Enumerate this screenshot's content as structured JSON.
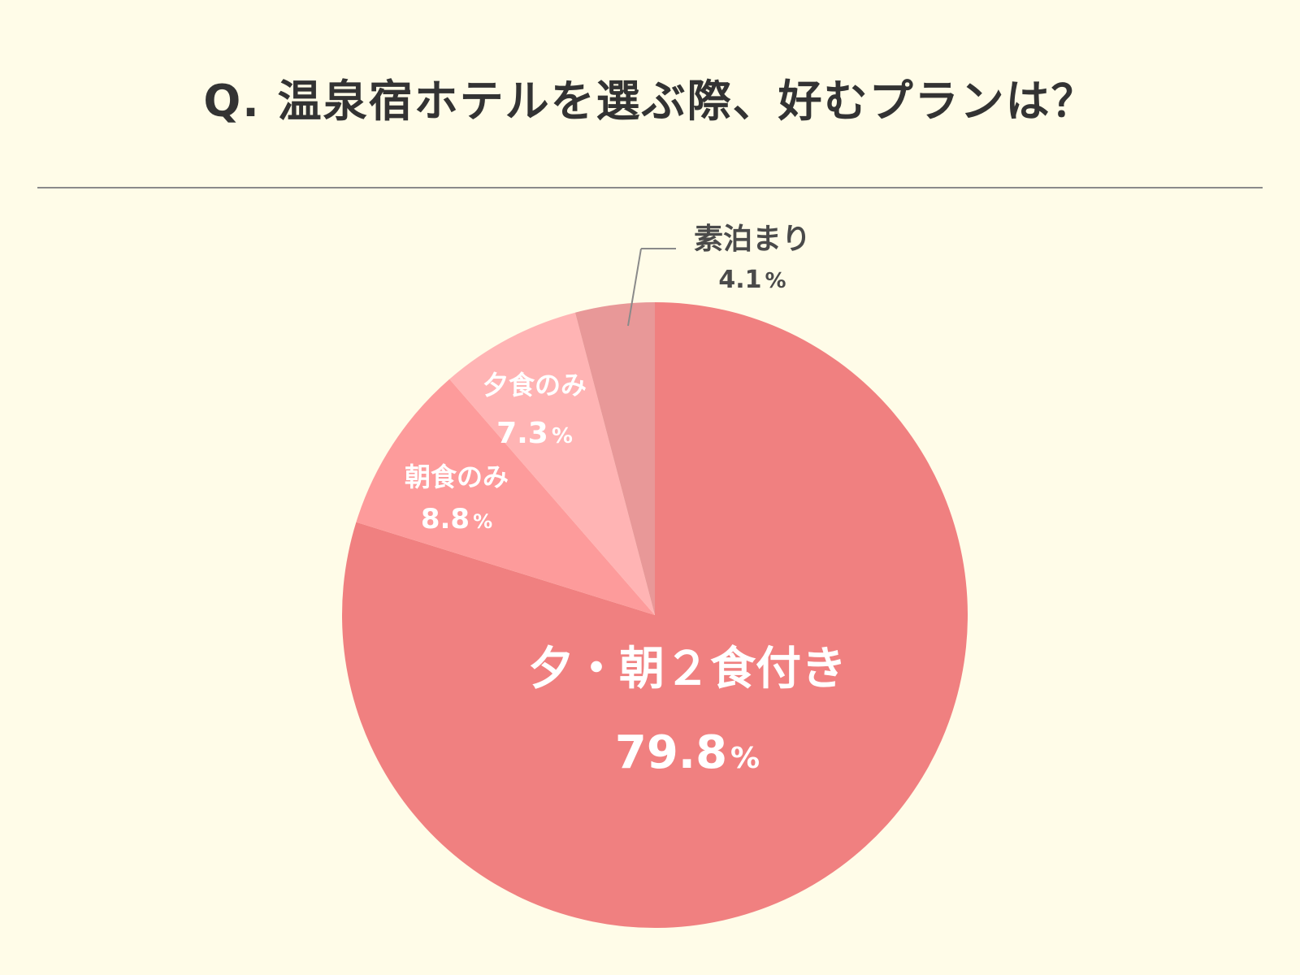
{
  "title": "Q. 温泉宿ホテルを選ぶ際、好むプランは？",
  "chart_data": {
    "type": "pie",
    "slices": [
      {
        "name": "夕・朝２食付き",
        "value": 79.8,
        "label": "79.8",
        "color": "#f08080"
      },
      {
        "name": "朝食のみ",
        "value": 8.8,
        "label": "8.8",
        "color": "#fd9b9b"
      },
      {
        "name": "夕食のみ",
        "value": 7.3,
        "label": "7.3",
        "color": "#ffb4b4"
      },
      {
        "name": "素泊まり",
        "value": 4.1,
        "label": "4.1",
        "color": "#e89898"
      }
    ],
    "unit": "%",
    "start": "12 o'clock",
    "direction": "clockwise"
  }
}
